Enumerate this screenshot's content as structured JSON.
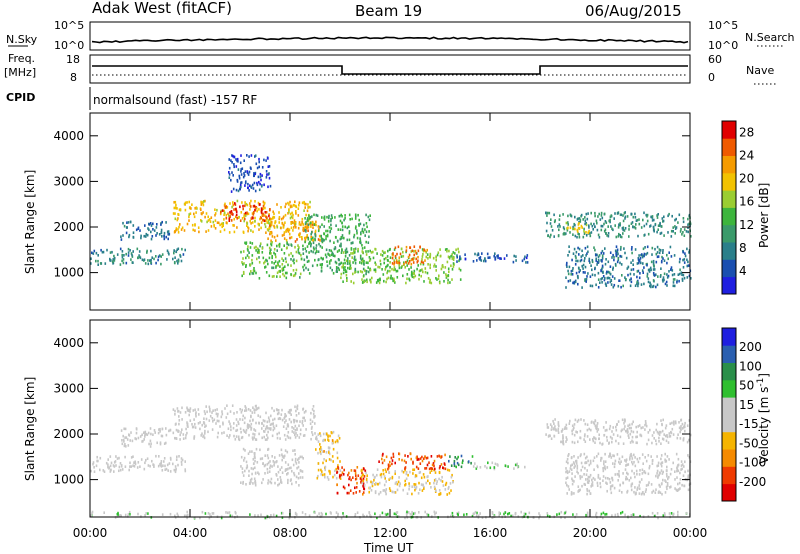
{
  "header": {
    "radar": "Adak West (fitACF)",
    "beam": "Beam 19",
    "date": "06/Aug/2015"
  },
  "top_panels": {
    "nsky_label": "N.Sky",
    "nsky_ticks": [
      "10^5",
      "10^0"
    ],
    "nsearch_label": "N.Search",
    "nsearch_ticks": [
      "10^5",
      "10^0"
    ],
    "freq_label_1": "Freq.",
    "freq_label_2": "[MHz]",
    "freq_ticks": [
      "18",
      "8"
    ],
    "nave_label": "Nave",
    "nave_ticks": [
      "60",
      "0"
    ],
    "cpid_label": "CPID",
    "cpid_text": "normalsound (fast) -157 RF"
  },
  "colors": {
    "power": [
      "#1f1fe0",
      "#1a4fb0",
      "#2a7f8a",
      "#3a9a6a",
      "#3db53d",
      "#9acd32",
      "#f2c200",
      "#f59b00",
      "#ef5a00",
      "#e00000"
    ],
    "velocity": [
      "#e00000",
      "#ef3a00",
      "#f58a00",
      "#f5b400",
      "#c8c8c8",
      "#c8c8c8",
      "#2fbf2f",
      "#2a8f4a",
      "#2a5fb0",
      "#1f1fe0"
    ],
    "axis": "#000000"
  },
  "chart_data": [
    {
      "type": "heatmap",
      "title": "Power",
      "xlabel": "",
      "ylabel": "Slant Range [km]",
      "xlim": [
        "00:00",
        "24:00"
      ],
      "ylim": [
        180,
        4500
      ],
      "y_ticks": [
        "1000",
        "2000",
        "3000",
        "4000"
      ],
      "colorbar_label": "Power [dB]",
      "colorbar_ticks": [
        "4",
        "8",
        "12",
        "16",
        "20",
        "24",
        "28"
      ],
      "colorbar_range": [
        0,
        30
      ],
      "bands": [
        {
          "t0": 0.0,
          "t1": 3.8,
          "r0": 1200,
          "r1": 1550,
          "level": 8
        },
        {
          "t0": 1.2,
          "t1": 3.2,
          "r0": 1750,
          "r1": 2150,
          "level": 7
        },
        {
          "t0": 3.3,
          "t1": 8.8,
          "r0": 1900,
          "r1": 2600,
          "level": 20
        },
        {
          "t0": 5.2,
          "t1": 7.2,
          "r0": 2150,
          "r1": 2550,
          "level": 26
        },
        {
          "t0": 7.0,
          "t1": 9.2,
          "r0": 1700,
          "r1": 2150,
          "level": 22
        },
        {
          "t0": 6.0,
          "t1": 8.5,
          "r0": 900,
          "r1": 1700,
          "level": 14
        },
        {
          "t0": 8.5,
          "t1": 11.2,
          "r0": 1000,
          "r1": 2300,
          "level": 12
        },
        {
          "t0": 10.0,
          "t1": 14.8,
          "r0": 800,
          "r1": 1550,
          "level": 15
        },
        {
          "t0": 12.0,
          "t1": 13.5,
          "r0": 1200,
          "r1": 1600,
          "level": 24
        },
        {
          "t0": 14.5,
          "t1": 17.5,
          "r0": 1250,
          "r1": 1450,
          "level": 5
        },
        {
          "t0": 18.2,
          "t1": 24.0,
          "r0": 1800,
          "r1": 2350,
          "level": 9
        },
        {
          "t0": 19.0,
          "t1": 20.0,
          "r0": 1900,
          "r1": 2150,
          "level": 18
        },
        {
          "t0": 19.0,
          "t1": 24.0,
          "r0": 700,
          "r1": 1600,
          "level": 7
        },
        {
          "t0": 5.5,
          "t1": 7.2,
          "r0": 2800,
          "r1": 3600,
          "level": 4
        }
      ]
    },
    {
      "type": "heatmap",
      "title": "Velocity",
      "xlabel": "Time UT",
      "ylabel": "Slant Range [km]",
      "xlim": [
        "00:00",
        "24:00"
      ],
      "ylim": [
        180,
        4500
      ],
      "x_ticks": [
        "00:00",
        "04:00",
        "08:00",
        "12:00",
        "16:00",
        "20:00",
        "00:00"
      ],
      "y_ticks": [
        "1000",
        "2000",
        "3000",
        "4000"
      ],
      "colorbar_label": "Velocity [m s^-1]",
      "colorbar_ticks": [
        "200",
        "100",
        "50",
        "15",
        "-15",
        "-50",
        "-100",
        "-200"
      ],
      "colorbar_range": [
        -250,
        250
      ],
      "bands": [
        {
          "t0": 0.0,
          "t1": 3.8,
          "r0": 1200,
          "r1": 1550,
          "level": 0
        },
        {
          "t0": 1.2,
          "t1": 3.2,
          "r0": 1750,
          "r1": 2150,
          "level": 0
        },
        {
          "t0": 3.3,
          "t1": 9.0,
          "r0": 1900,
          "r1": 2650,
          "level": 0
        },
        {
          "t0": 6.0,
          "t1": 8.5,
          "r0": 900,
          "r1": 1700,
          "level": 0
        },
        {
          "t0": 9.0,
          "t1": 10.0,
          "r0": 1000,
          "r1": 2100,
          "level": -60
        },
        {
          "t0": 9.8,
          "t1": 11.0,
          "r0": 700,
          "r1": 1300,
          "level": -180
        },
        {
          "t0": 10.8,
          "t1": 14.5,
          "r0": 700,
          "r1": 1250,
          "level": -50
        },
        {
          "t0": 11.5,
          "t1": 14.2,
          "r0": 1250,
          "r1": 1600,
          "level": -170
        },
        {
          "t0": 14.3,
          "t1": 15.3,
          "r0": 1300,
          "r1": 1550,
          "level": 120
        },
        {
          "t0": 15.3,
          "t1": 17.5,
          "r0": 1250,
          "r1": 1400,
          "level": 30
        },
        {
          "t0": 18.2,
          "t1": 24.0,
          "r0": 1800,
          "r1": 2350,
          "level": 0
        },
        {
          "t0": 19.0,
          "t1": 24.0,
          "r0": 700,
          "r1": 1600,
          "level": 0
        },
        {
          "t0": 0.0,
          "t1": 24.0,
          "r0": 180,
          "r1": 320,
          "level": 30
        }
      ]
    }
  ]
}
